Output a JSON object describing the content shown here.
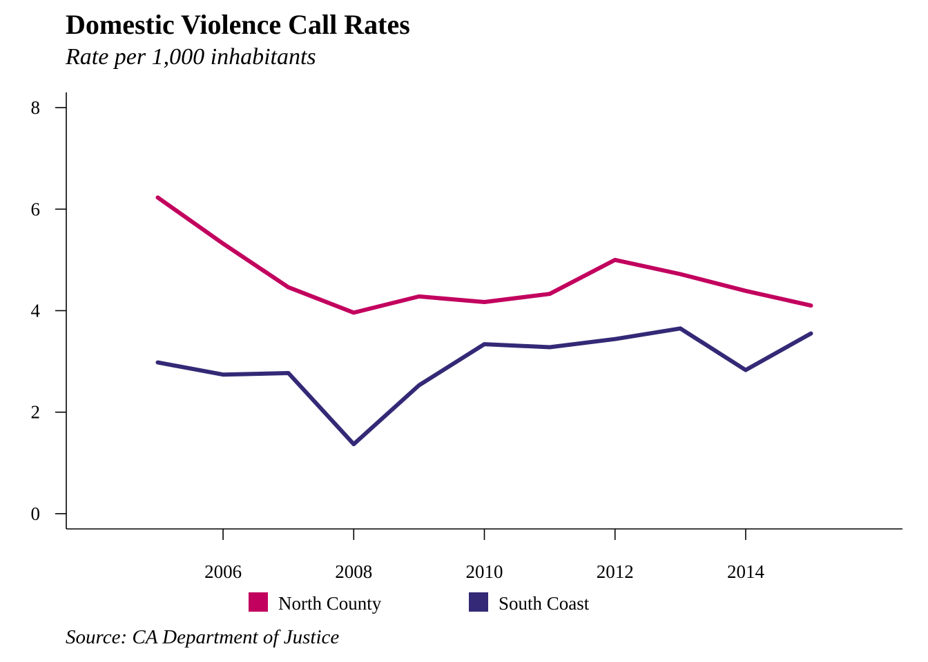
{
  "chart_data": {
    "type": "line",
    "title": "Domestic Violence Call Rates",
    "subtitle": "Rate per 1,000 inhabitants",
    "source": "Source: CA Department of Justice",
    "xlabel": "",
    "ylabel": "",
    "x": [
      2005,
      2006,
      2007,
      2008,
      2009,
      2010,
      2011,
      2012,
      2013,
      2014,
      2015
    ],
    "xlim": [
      2003.6,
      2016.4
    ],
    "ylim": [
      -0.3,
      8.3
    ],
    "x_ticks": [
      "2006",
      "2008",
      "2010",
      "2012",
      "2014"
    ],
    "y_ticks": [
      "0",
      "2",
      "4",
      "6",
      "8"
    ],
    "grid": false,
    "legend_position": "bottom",
    "series": [
      {
        "name": "North County",
        "color": "#c2005e",
        "values": [
          6.23,
          5.32,
          4.46,
          3.96,
          4.28,
          4.17,
          4.33,
          5.0,
          4.72,
          4.39,
          4.1
        ]
      },
      {
        "name": "South Coast",
        "color": "#332976",
        "values": [
          2.98,
          2.74,
          2.77,
          1.37,
          2.53,
          3.34,
          3.28,
          3.44,
          3.65,
          2.83,
          3.55
        ]
      }
    ]
  }
}
